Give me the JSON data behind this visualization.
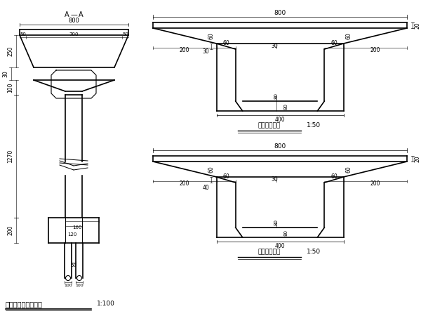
{
  "bg_color": "#ffffff",
  "line_color": "#000000",
  "title": "应力连续梁桥截面图",
  "title_scale": "1:100",
  "mid_section_title": "跨中截面详图",
  "mid_section_scale": "1:50",
  "support_section_title": "支点截面详图",
  "support_section_scale": "1:50"
}
